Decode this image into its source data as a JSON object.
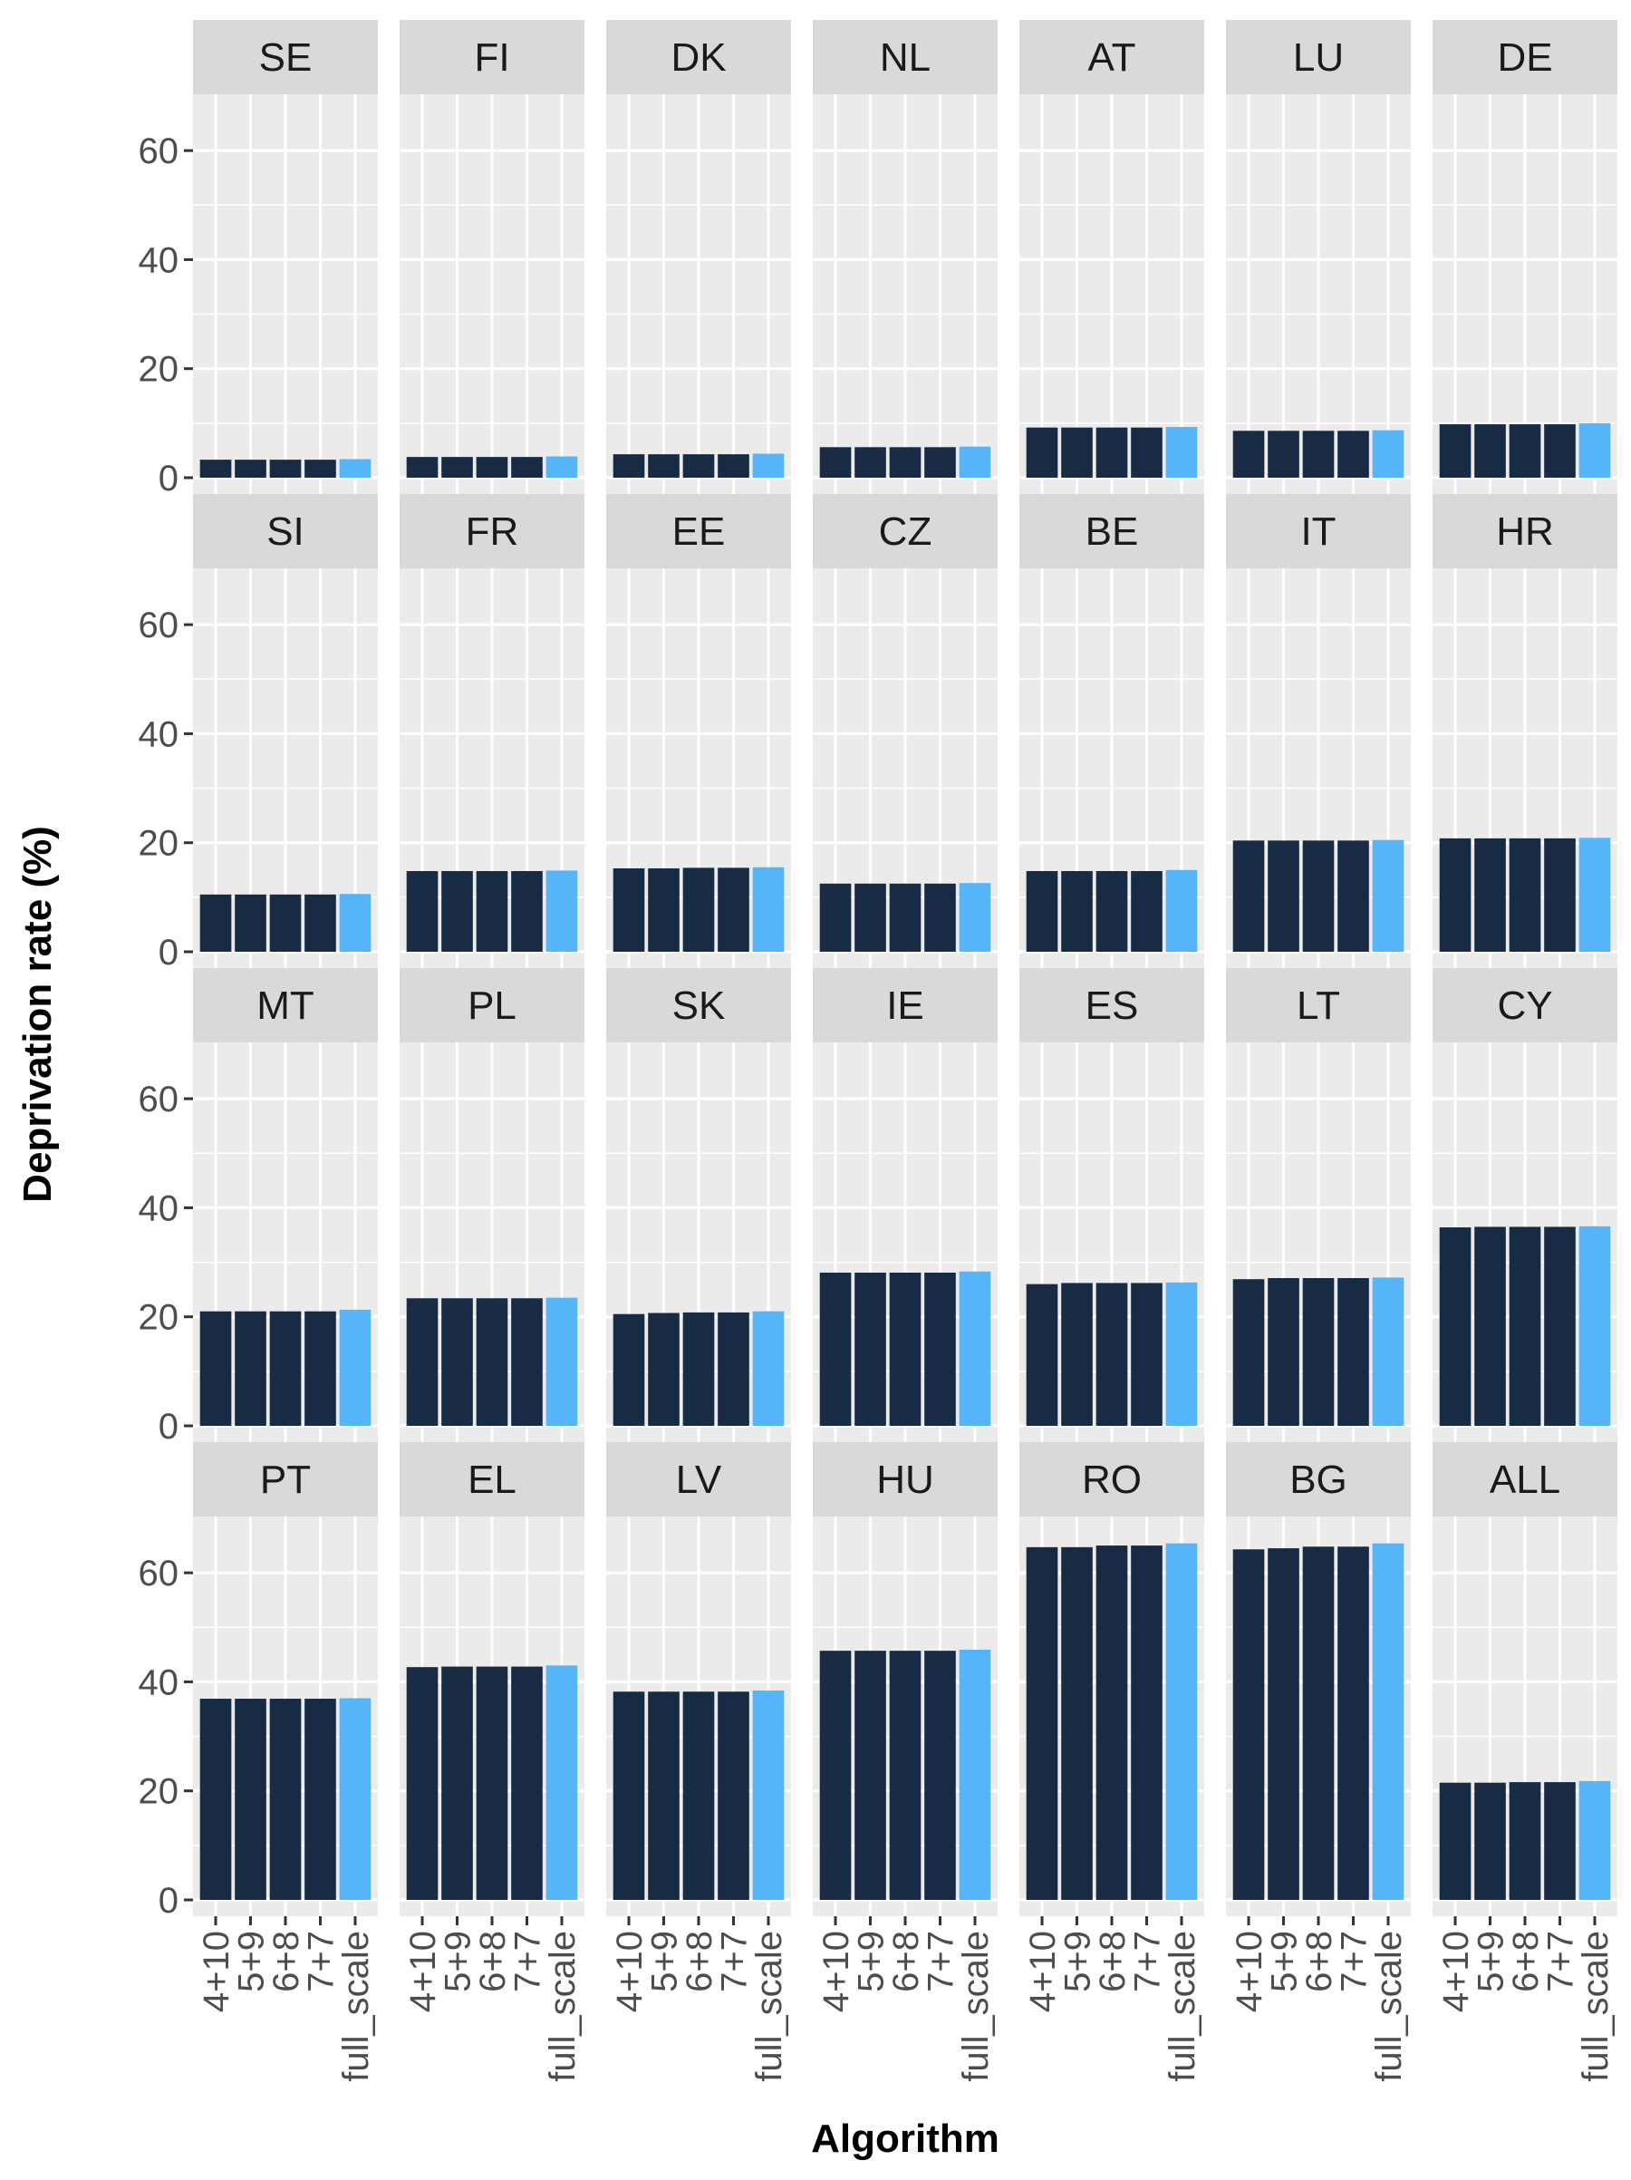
{
  "chart_data": {
    "type": "bar",
    "facet_layout": "4 rows x 7 columns",
    "xlabel": "Algorithm",
    "ylabel": "Deprivation rate (%)",
    "categories": [
      "4+10",
      "5+9",
      "6+8",
      "7+7",
      "full_scale"
    ],
    "y_ticks": [
      0,
      20,
      40,
      60
    ],
    "ylim": [
      0,
      69
    ],
    "grid": true,
    "colors": {
      "algorithm": "#172b45",
      "full_scale": "#56b4f9",
      "panel": "#ebebeb",
      "strip": "#d9d9d9",
      "grid": "#ffffff"
    },
    "panels": [
      {
        "name": "SE",
        "values": [
          3.3,
          3.3,
          3.3,
          3.3,
          3.4
        ]
      },
      {
        "name": "FI",
        "values": [
          3.8,
          3.8,
          3.8,
          3.8,
          3.9
        ]
      },
      {
        "name": "DK",
        "values": [
          4.3,
          4.3,
          4.3,
          4.3,
          4.4
        ]
      },
      {
        "name": "NL",
        "values": [
          5.6,
          5.6,
          5.6,
          5.6,
          5.7
        ]
      },
      {
        "name": "AT",
        "values": [
          9.2,
          9.2,
          9.2,
          9.2,
          9.3
        ]
      },
      {
        "name": "LU",
        "values": [
          8.6,
          8.6,
          8.6,
          8.6,
          8.7
        ]
      },
      {
        "name": "DE",
        "values": [
          9.8,
          9.8,
          9.8,
          9.8,
          10.0
        ]
      },
      {
        "name": "SI",
        "values": [
          10.5,
          10.5,
          10.5,
          10.5,
          10.6
        ]
      },
      {
        "name": "FR",
        "values": [
          14.8,
          14.8,
          14.8,
          14.8,
          14.9
        ]
      },
      {
        "name": "EE",
        "values": [
          15.3,
          15.3,
          15.4,
          15.4,
          15.5
        ]
      },
      {
        "name": "CZ",
        "values": [
          12.5,
          12.5,
          12.5,
          12.5,
          12.6
        ]
      },
      {
        "name": "BE",
        "values": [
          14.8,
          14.8,
          14.8,
          14.8,
          15.0
        ]
      },
      {
        "name": "IT",
        "values": [
          20.4,
          20.4,
          20.4,
          20.4,
          20.5
        ]
      },
      {
        "name": "HR",
        "values": [
          20.8,
          20.8,
          20.8,
          20.8,
          20.9
        ]
      },
      {
        "name": "MT",
        "values": [
          21.0,
          21.0,
          21.0,
          21.0,
          21.3
        ]
      },
      {
        "name": "PL",
        "values": [
          23.4,
          23.4,
          23.4,
          23.4,
          23.5
        ]
      },
      {
        "name": "SK",
        "values": [
          20.5,
          20.7,
          20.8,
          20.8,
          21.0
        ]
      },
      {
        "name": "IE",
        "values": [
          28.1,
          28.1,
          28.1,
          28.1,
          28.3
        ]
      },
      {
        "name": "ES",
        "values": [
          26.0,
          26.2,
          26.2,
          26.2,
          26.3
        ]
      },
      {
        "name": "LT",
        "values": [
          26.9,
          27.1,
          27.1,
          27.1,
          27.2
        ]
      },
      {
        "name": "CY",
        "values": [
          36.4,
          36.5,
          36.5,
          36.5,
          36.6
        ]
      },
      {
        "name": "PT",
        "values": [
          36.9,
          36.9,
          36.9,
          36.9,
          37.0
        ]
      },
      {
        "name": "EL",
        "values": [
          42.7,
          42.8,
          42.8,
          42.8,
          43.0
        ]
      },
      {
        "name": "LV",
        "values": [
          38.2,
          38.2,
          38.2,
          38.2,
          38.4
        ]
      },
      {
        "name": "HU",
        "values": [
          45.7,
          45.7,
          45.7,
          45.7,
          45.9
        ]
      },
      {
        "name": "RO",
        "values": [
          64.7,
          64.7,
          65.0,
          65.0,
          65.4
        ]
      },
      {
        "name": "BG",
        "values": [
          64.3,
          64.5,
          64.8,
          64.8,
          65.4
        ]
      },
      {
        "name": "ALL",
        "values": [
          21.5,
          21.5,
          21.6,
          21.6,
          21.8
        ]
      }
    ]
  }
}
